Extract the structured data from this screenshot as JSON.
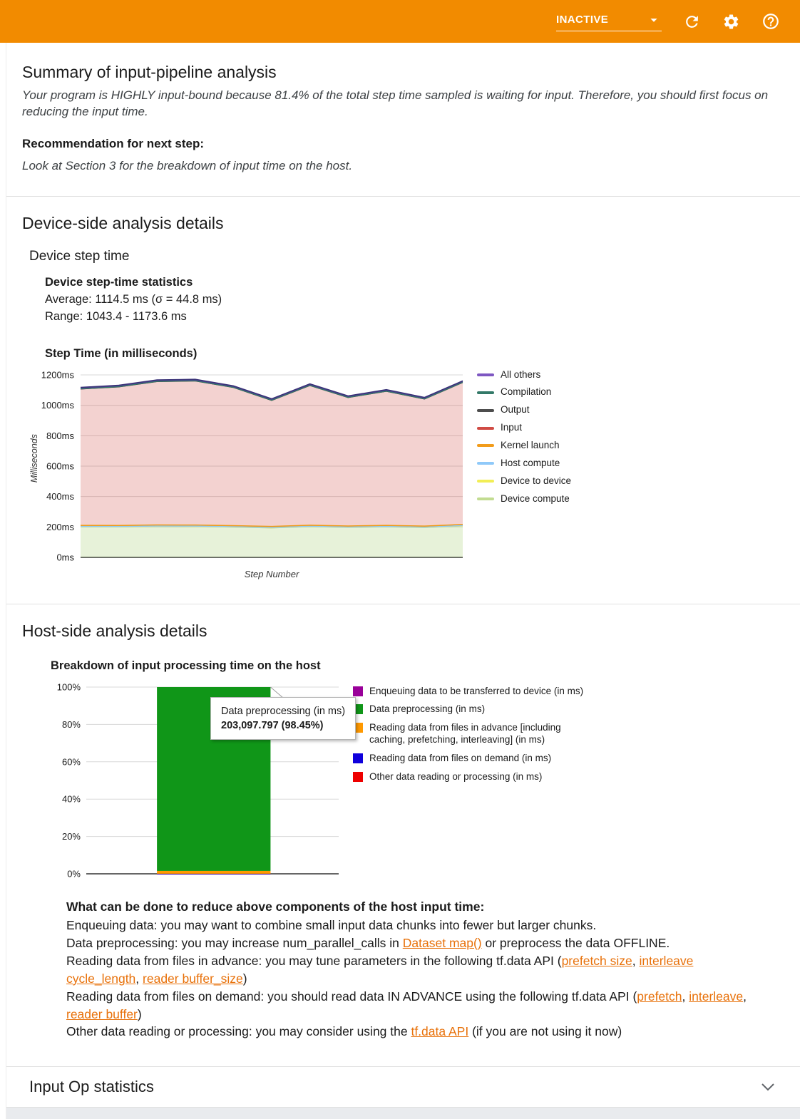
{
  "header": {
    "status_label": "INACTIVE"
  },
  "theme": {
    "topbar_color": "#f28b00",
    "link_color": "#e8710a"
  },
  "summary": {
    "title": "Summary of input-pipeline analysis",
    "body": "Your program is HIGHLY input-bound because 81.4% of the total step time sampled is waiting for input. Therefore, you should first focus on reducing the input time.",
    "recommendation_label": "Recommendation for next step:",
    "recommendation_body": "Look at Section 3 for the breakdown of input time on the host."
  },
  "device_side": {
    "title": "Device-side analysis details",
    "subtitle": "Device step time",
    "stats_title": "Device step-time statistics",
    "average": "Average: 1114.5 ms (σ = 44.8 ms)",
    "range": "Range: 1043.4 - 1173.6 ms",
    "chart_title": "Step Time (in milliseconds)"
  },
  "host_side": {
    "title": "Host-side analysis details",
    "chart_title": "Breakdown of input processing time on the host",
    "advice_title": "What can be done to reduce above components of the host input time:",
    "advice_lines": [
      [
        {
          "t": "Enqueuing data: you may want to combine small input data chunks into fewer but larger chunks."
        }
      ],
      [
        {
          "t": "Data preprocessing: you may increase num_parallel_calls in "
        },
        {
          "t": "Dataset map()",
          "link": true
        },
        {
          "t": " or preprocess the data OFFLINE."
        }
      ],
      [
        {
          "t": "Reading data from files in advance: you may tune parameters in the following tf.data API ("
        },
        {
          "t": "prefetch size",
          "link": true
        },
        {
          "t": ", "
        },
        {
          "t": "interleave cycle_length",
          "link": true
        },
        {
          "t": ", "
        },
        {
          "t": "reader buffer_size",
          "link": true
        },
        {
          "t": ")"
        }
      ],
      [
        {
          "t": "Reading data from files on demand: you should read data IN ADVANCE using the following tf.data API ("
        },
        {
          "t": "prefetch",
          "link": true
        },
        {
          "t": ", "
        },
        {
          "t": "interleave",
          "link": true
        },
        {
          "t": ", "
        },
        {
          "t": "reader buffer",
          "link": true
        },
        {
          "t": ")"
        }
      ],
      [
        {
          "t": "Other data reading or processing: you may consider using the "
        },
        {
          "t": "tf.data API",
          "link": true
        },
        {
          "t": " (if you are not using it now)"
        }
      ]
    ]
  },
  "input_op": {
    "title": "Input Op statistics"
  },
  "chart_data": [
    {
      "type": "area",
      "stacked": true,
      "title": "Step Time (in milliseconds)",
      "xlabel": "Step Number",
      "ylabel": "Milliseconds",
      "ylim": [
        0,
        1200
      ],
      "grid": true,
      "legend_position": "right",
      "yticks": [
        {
          "label": "0ms",
          "value": 0
        },
        {
          "label": "200ms",
          "value": 200
        },
        {
          "label": "400ms",
          "value": 400
        },
        {
          "label": "600ms",
          "value": 600
        },
        {
          "label": "800ms",
          "value": 800
        },
        {
          "label": "1000ms",
          "value": 1000
        },
        {
          "label": "1200ms",
          "value": 1200
        }
      ],
      "series": [
        {
          "name": "Device compute",
          "color": "#b4d27f",
          "fill": "rgba(174,213,129,0.30)",
          "lw": 1,
          "values": [
            200,
            199,
            203,
            202,
            198,
            193,
            201,
            196,
            200,
            195,
            206
          ]
        },
        {
          "name": "Device to device",
          "color": "#f2ee55",
          "fill": "#f2ee55",
          "lw": 1.5,
          "values": [
            2,
            2,
            2,
            2,
            2,
            2,
            2,
            2,
            2,
            2,
            2
          ]
        },
        {
          "name": "Host compute",
          "color": "#8fc9f9",
          "fill": "#8fc9f9",
          "lw": 1.5,
          "values": [
            1.5,
            1.5,
            1.5,
            1.5,
            1.5,
            1.5,
            1.5,
            1.5,
            1.5,
            1.5,
            1.5
          ]
        },
        {
          "name": "Kernel launch",
          "color": "#ef9a16",
          "fill": "#f6a832",
          "lw": 1.5,
          "values": [
            7,
            7,
            7,
            7,
            7,
            7,
            7,
            7,
            7,
            7,
            7
          ]
        },
        {
          "name": "Input",
          "color": "#d8a7a7",
          "fill": "rgba(208,75,68,0.25)",
          "lw": 0,
          "values": [
            894,
            909,
            940,
            945,
            906,
            826,
            916,
            842,
            879,
            833,
            931
          ]
        },
        {
          "name": "Output",
          "color": "#4a4a4a",
          "fill": "#4a4a4a",
          "lw": 1,
          "values": [
            2,
            2,
            2,
            2,
            2,
            2,
            2,
            2,
            2,
            2,
            2
          ]
        },
        {
          "name": "Compilation",
          "color": "#2f7d68",
          "fill": "#2f7d68",
          "lw": 1,
          "values": [
            1.5,
            1.5,
            1.5,
            1.5,
            1.5,
            1.5,
            1.5,
            1.5,
            1.5,
            1.5,
            1.5
          ]
        },
        {
          "name": "All others",
          "color": "#3a3277",
          "fill": "#4c428f",
          "lw": 1.5,
          "values": [
            10,
            10,
            10,
            10,
            10,
            10,
            10,
            10,
            10,
            10,
            10
          ]
        }
      ],
      "legend": [
        {
          "label": "All others",
          "color": "#7e57c2"
        },
        {
          "label": "Compilation",
          "color": "#337968"
        },
        {
          "label": "Output",
          "color": "#4d4d4d"
        },
        {
          "label": "Input",
          "color": "#d04b44"
        },
        {
          "label": "Kernel launch",
          "color": "#f29c1b"
        },
        {
          "label": "Host compute",
          "color": "#8fc9f9"
        },
        {
          "label": "Device to device",
          "color": "#f2ee55"
        },
        {
          "label": "Device compute",
          "color": "#c2dc91"
        }
      ]
    },
    {
      "type": "bar",
      "stacked": true,
      "title": "Breakdown of input processing time on the host",
      "ylim": [
        0,
        100
      ],
      "grid": true,
      "legend_position": "right",
      "yticks": [
        {
          "label": "0%",
          "value": 0
        },
        {
          "label": "20%",
          "value": 20
        },
        {
          "label": "40%",
          "value": 40
        },
        {
          "label": "60%",
          "value": 60
        },
        {
          "label": "80%",
          "value": 80
        },
        {
          "label": "100%",
          "value": 100
        }
      ],
      "bar": {
        "segments": [
          {
            "name": "Other data reading or processing (in ms)",
            "color": "#ee0000",
            "pct": 0.03
          },
          {
            "name": "Reading data from files on demand (in ms)",
            "color": "#0f00dc",
            "pct": 0.02
          },
          {
            "name": "Reading data from files in advance [including caching, prefetching, interleaving] (in ms)",
            "color": "#ff9900",
            "pct": 1.5
          },
          {
            "name": "Data preprocessing (in ms)",
            "color": "#109618",
            "pct": 98.45
          },
          {
            "name": "Enqueuing data to be transferred to device (in ms)",
            "color": "#990099",
            "pct": 0
          }
        ]
      },
      "legend": [
        {
          "label": "Enqueuing data to be transferred to device (in ms)",
          "color": "#990099"
        },
        {
          "label": "Data preprocessing (in ms)",
          "color": "#109618"
        },
        {
          "label": "Reading data from files in advance [including caching, prefetching, interleaving] (in ms)",
          "color": "#ff9900"
        },
        {
          "label": "Reading data from files on demand (in ms)",
          "color": "#0f00dc"
        },
        {
          "label": "Other data reading or processing (in ms)",
          "color": "#ee0000"
        }
      ],
      "tooltip": {
        "title": "Data preprocessing (in ms)",
        "value": "203,097.797 (98.45%)"
      }
    }
  ]
}
